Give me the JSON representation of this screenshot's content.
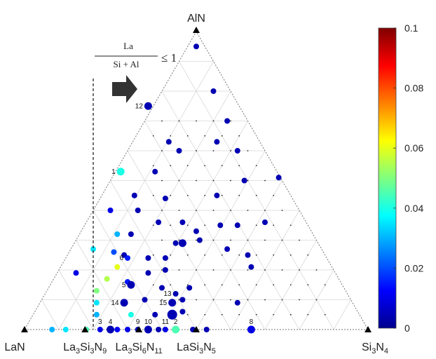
{
  "chart_data": {
    "type": "scatter",
    "subtype": "ternary",
    "apexes": {
      "top": {
        "formula": "AlN"
      },
      "left": {
        "formula": "LaN"
      },
      "right": {
        "formula": "Si3N4",
        "parts": [
          [
            "Si",
            ""
          ],
          [
            "3",
            "sub"
          ],
          [
            "N",
            ""
          ],
          [
            "4",
            "sub"
          ]
        ]
      }
    },
    "base_labels": [
      {
        "parts": [
          [
            "La",
            ""
          ],
          [
            "3",
            "sub"
          ],
          [
            "Si",
            ""
          ],
          [
            "3",
            "sub"
          ],
          [
            "N",
            ""
          ],
          [
            "9",
            "sub"
          ]
        ],
        "pos": 0.176
      },
      {
        "parts": [
          [
            "La",
            ""
          ],
          [
            "3",
            "sub"
          ],
          [
            "Si",
            ""
          ],
          [
            "6",
            "sub"
          ],
          [
            "N",
            ""
          ],
          [
            "11",
            "sub"
          ]
        ],
        "pos": 0.333
      },
      {
        "parts": [
          [
            "LaSi",
            ""
          ],
          [
            "3",
            "sub"
          ],
          [
            "N",
            ""
          ],
          [
            "5",
            "sub"
          ]
        ],
        "pos": 0.5
      }
    ],
    "annotation": {
      "numerator": "La",
      "denominator": "Si + Al",
      "relation": "≤ 1",
      "boundary_pos": 0.2,
      "arrow": "right"
    },
    "colorbar": {
      "min": 0,
      "max": 0.1,
      "ticks": [
        "0",
        "0.02",
        "0.04",
        "0.06",
        "0.08",
        "0.1"
      ],
      "colormap": "jet"
    },
    "grid": true,
    "points": [
      {
        "x": 0.08,
        "h": 0.0,
        "v": 0.03,
        "s": 1
      },
      {
        "x": 0.12,
        "h": 0.0,
        "v": 0.035,
        "s": 1
      },
      {
        "x": 0.18,
        "h": 0.0,
        "v": 0.045,
        "s": 1
      },
      {
        "x": 0.22,
        "h": 0.0,
        "v": 0.01,
        "s": 1,
        "label": "3"
      },
      {
        "x": 0.25,
        "h": 0.0,
        "v": 0.005,
        "s": 2,
        "label": "4"
      },
      {
        "x": 0.27,
        "h": 0.0,
        "v": 0.012,
        "s": 1
      },
      {
        "x": 0.3,
        "h": 0.0,
        "v": 0.01,
        "s": 1
      },
      {
        "x": 0.33,
        "h": 0.0,
        "v": 0.005,
        "s": 1,
        "label": "9"
      },
      {
        "x": 0.36,
        "h": 0.0,
        "v": 0.005,
        "s": 2,
        "label": "10"
      },
      {
        "x": 0.39,
        "h": 0.0,
        "v": 0.005,
        "s": 1
      },
      {
        "x": 0.41,
        "h": 0.0,
        "v": 0.01,
        "s": 1,
        "label": "11"
      },
      {
        "x": 0.44,
        "h": 0.0,
        "v": 0.045,
        "s": 2,
        "label": "2"
      },
      {
        "x": 0.49,
        "h": 0.0,
        "v": 0.005,
        "s": 1
      },
      {
        "x": 0.53,
        "h": 0.0,
        "v": 0.005,
        "s": 1
      },
      {
        "x": 0.66,
        "h": 0.0,
        "v": 0.01,
        "s": 2,
        "label": "8"
      },
      {
        "x": 0.5,
        "h": 0.95,
        "v": 0.005,
        "s": 1
      },
      {
        "x": 0.55,
        "h": 0.8,
        "v": 0.005,
        "s": 1
      },
      {
        "x": 0.36,
        "h": 0.75,
        "v": 0.005,
        "s": 2,
        "label": "12"
      },
      {
        "x": 0.59,
        "h": 0.7,
        "v": 0.005,
        "s": 1
      },
      {
        "x": 0.42,
        "h": 0.63,
        "v": 0.005,
        "s": 1
      },
      {
        "x": 0.45,
        "h": 0.6,
        "v": 0.005,
        "s": 1
      },
      {
        "x": 0.56,
        "h": 0.63,
        "v": 0.005,
        "s": 1
      },
      {
        "x": 0.62,
        "h": 0.6,
        "v": 0.005,
        "s": 1
      },
      {
        "x": 0.28,
        "h": 0.53,
        "v": 0.04,
        "s": 2,
        "label": "1"
      },
      {
        "x": 0.38,
        "h": 0.53,
        "v": 0.005,
        "s": 1
      },
      {
        "x": 0.64,
        "h": 0.5,
        "v": 0.005,
        "s": 1
      },
      {
        "x": 0.74,
        "h": 0.51,
        "v": 0.005,
        "s": 1
      },
      {
        "x": 0.32,
        "h": 0.45,
        "v": 0.005,
        "s": 1
      },
      {
        "x": 0.41,
        "h": 0.44,
        "v": 0.005,
        "s": 1
      },
      {
        "x": 0.56,
        "h": 0.45,
        "v": 0.005,
        "s": 1
      },
      {
        "x": 0.25,
        "h": 0.4,
        "v": 0.01,
        "s": 1
      },
      {
        "x": 0.33,
        "h": 0.4,
        "v": 0.005,
        "s": 1
      },
      {
        "x": 0.39,
        "h": 0.36,
        "v": 0.005,
        "s": 1
      },
      {
        "x": 0.46,
        "h": 0.36,
        "v": 0.005,
        "s": 1
      },
      {
        "x": 0.5,
        "h": 0.33,
        "v": 0.005,
        "s": 1
      },
      {
        "x": 0.57,
        "h": 0.35,
        "v": 0.005,
        "s": 1
      },
      {
        "x": 0.62,
        "h": 0.35,
        "v": 0.005,
        "s": 1
      },
      {
        "x": 0.7,
        "h": 0.36,
        "v": 0.005,
        "s": 1
      },
      {
        "x": 0.27,
        "h": 0.32,
        "v": 0.03,
        "s": 1
      },
      {
        "x": 0.31,
        "h": 0.32,
        "v": 0.005,
        "s": 1
      },
      {
        "x": 0.44,
        "h": 0.29,
        "v": 0.005,
        "s": 1
      },
      {
        "x": 0.46,
        "h": 0.29,
        "v": 0.005,
        "s": 2
      },
      {
        "x": 0.51,
        "h": 0.3,
        "v": 0.005,
        "s": 1
      },
      {
        "x": 0.59,
        "h": 0.27,
        "v": 0.005,
        "s": 1
      },
      {
        "x": 0.2,
        "h": 0.27,
        "v": 0.035,
        "s": 1
      },
      {
        "x": 0.26,
        "h": 0.26,
        "v": 0.02,
        "s": 1
      },
      {
        "x": 0.29,
        "h": 0.25,
        "v": 0.005,
        "s": 1
      },
      {
        "x": 0.3,
        "h": 0.24,
        "v": 0.015,
        "s": 1,
        "label": "6"
      },
      {
        "x": 0.36,
        "h": 0.24,
        "v": 0.005,
        "s": 1
      },
      {
        "x": 0.41,
        "h": 0.24,
        "v": 0.005,
        "s": 1
      },
      {
        "x": 0.65,
        "h": 0.25,
        "v": 0.005,
        "s": 1
      },
      {
        "x": 0.27,
        "h": 0.21,
        "v": 0.06,
        "s": 1
      },
      {
        "x": 0.36,
        "h": 0.19,
        "v": 0.005,
        "s": 1
      },
      {
        "x": 0.41,
        "h": 0.2,
        "v": 0.005,
        "s": 1
      },
      {
        "x": 0.66,
        "h": 0.21,
        "v": 0.005,
        "s": 1
      },
      {
        "x": 0.15,
        "h": 0.19,
        "v": 0.01,
        "s": 1
      },
      {
        "x": 0.24,
        "h": 0.17,
        "v": 0.055,
        "s": 1
      },
      {
        "x": 0.3,
        "h": 0.16,
        "v": 0.015,
        "s": 1
      },
      {
        "x": 0.31,
        "h": 0.15,
        "v": 0.005,
        "s": 2,
        "label": "5"
      },
      {
        "x": 0.4,
        "h": 0.14,
        "v": 0.005,
        "s": 1
      },
      {
        "x": 0.48,
        "h": 0.14,
        "v": 0.005,
        "s": 1
      },
      {
        "x": 0.21,
        "h": 0.13,
        "v": 0.05,
        "s": 1
      },
      {
        "x": 0.44,
        "h": 0.12,
        "v": 0.005,
        "s": 1,
        "label": "13"
      },
      {
        "x": 0.21,
        "h": 0.09,
        "v": 0.035,
        "s": 1
      },
      {
        "x": 0.29,
        "h": 0.09,
        "v": 0.005,
        "s": 2,
        "label": "14"
      },
      {
        "x": 0.35,
        "h": 0.1,
        "v": 0.005,
        "s": 1
      },
      {
        "x": 0.43,
        "h": 0.09,
        "v": 0.005,
        "s": 2,
        "label": "15"
      },
      {
        "x": 0.46,
        "h": 0.1,
        "v": 0.005,
        "s": 1
      },
      {
        "x": 0.62,
        "h": 0.09,
        "v": 0.005,
        "s": 1
      },
      {
        "x": 0.21,
        "h": 0.05,
        "v": 0.03,
        "s": 1
      },
      {
        "x": 0.31,
        "h": 0.05,
        "v": 0.04,
        "s": 1
      },
      {
        "x": 0.38,
        "h": 0.05,
        "v": 0.005,
        "s": 1
      },
      {
        "x": 0.43,
        "h": 0.05,
        "v": 0.005,
        "s": 3
      },
      {
        "x": 0.46,
        "h": 0.06,
        "v": 0.005,
        "s": 1
      }
    ]
  }
}
